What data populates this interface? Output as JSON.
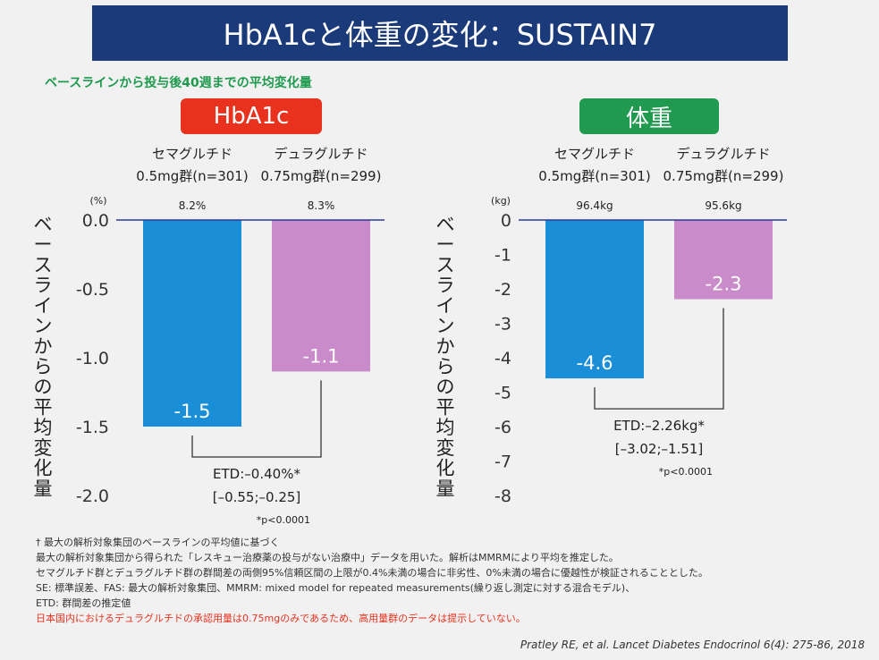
{
  "title": "HbA1cと体重の変化：SUSTAIN7",
  "subtitle": "ベースラインから投与後40週までの平均変化量",
  "colors": {
    "title_bg": "#1a3a7a",
    "hba1c_badge": "#e8321e",
    "weight_badge": "#1f9a4e",
    "sema": "#1a8fd8",
    "dula": "#c98bc9",
    "axis": "#2a3a9a"
  },
  "chart_data": [
    {
      "type": "bar",
      "badge": "HbA1c",
      "unit": "(%)",
      "ylabel": "ベースラインからの平均変化量",
      "ylim": [
        -2.0,
        0.0
      ],
      "yticks": [
        "0.0",
        "-0.5",
        "-1.0",
        "-1.5",
        "-2.0"
      ],
      "ytick_values": [
        0,
        -0.5,
        -1.0,
        -1.5,
        -2.0
      ],
      "categories": [
        {
          "name": "セマグルチド",
          "dose": "0.5mg群(n=301)",
          "baseline": "8.2%"
        },
        {
          "name": "デュラグルチド",
          "dose": "0.75mg群(n=299)",
          "baseline": "8.3%"
        }
      ],
      "values": [
        -1.5,
        -1.1
      ],
      "value_labels": [
        "-1.5",
        "-1.1"
      ],
      "etd": "ETD:–0.40%*",
      "ci": "[–0.55;–0.25]",
      "p": "*p<0.0001"
    },
    {
      "type": "bar",
      "badge": "体重",
      "unit": "(kg)",
      "ylabel": "ベースラインからの平均変化量",
      "ylim": [
        -8,
        0
      ],
      "yticks": [
        "0",
        "-1",
        "-2",
        "-3",
        "-4",
        "-5",
        "-6",
        "-7",
        "-8"
      ],
      "ytick_values": [
        0,
        -1,
        -2,
        -3,
        -4,
        -5,
        -6,
        -7,
        -8
      ],
      "categories": [
        {
          "name": "セマグルチド",
          "dose": "0.5mg群(n=301)",
          "baseline": "96.4kg"
        },
        {
          "name": "デュラグルチド",
          "dose": "0.75mg群(n=299)",
          "baseline": "95.6kg"
        }
      ],
      "values": [
        -4.6,
        -2.3
      ],
      "value_labels": [
        "-4.6",
        "-2.3"
      ],
      "etd": "ETD:–2.26kg*",
      "ci": "[–3.02;–1.51]",
      "p": "*p<0.0001"
    }
  ],
  "footnotes": [
    "† 最大の解析対象集団のベースラインの平均値に基づく",
    "最大の解析対象集団から得られた「レスキュー治療薬の投与がない治療中」データを用いた。解析はMMRMにより平均を推定した。",
    "セマグルチド群とデュラグルチド群の群間差の両側95%信頼区間の上限が0.4%未満の場合に非劣性、0%未満の場合に優越性が検証されることとした。",
    "SE: 標準誤差、FAS: 最大の解析対象集団、MMRM: mixed model for repeated measurements(繰り返し測定に対する混合モデル)、",
    "ETD: 群間差の推定値"
  ],
  "footnote_red": "日本国内におけるデュラグルチドの承認用量は0.75mgのみであるため、高用量群のデータは提示していない。",
  "citation": "Pratley RE, et al.  Lancet Diabetes Endocrinol 6(4): 275-86, 2018"
}
